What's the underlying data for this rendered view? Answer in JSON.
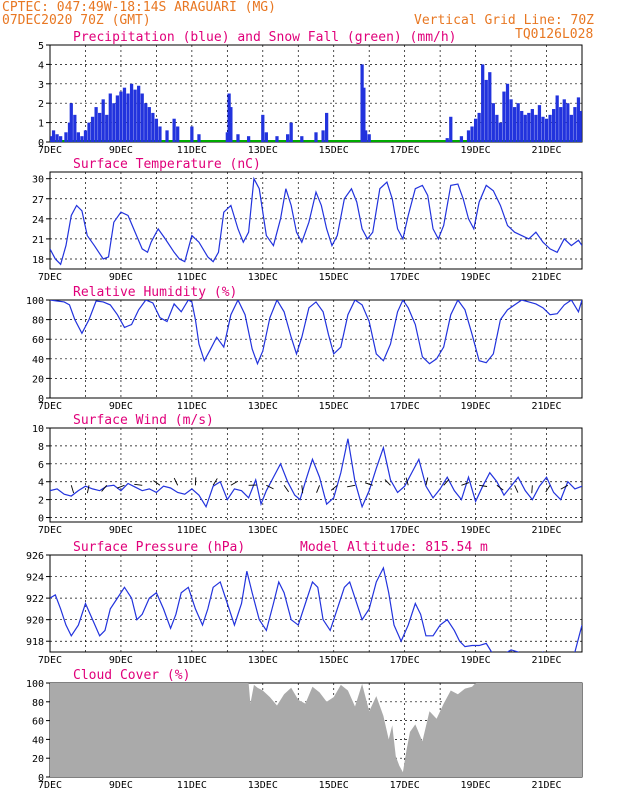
{
  "header": {
    "line1": "CPTEC:   047:49W-18:14S   ARAGUARI (MG)",
    "line2": "07DEC2020 70Z (GMT)",
    "grid_note": "Vertical Grid Line: 70Z",
    "code": "TQ0126L028"
  },
  "x_labels": [
    "7DEC",
    "9DEC",
    "11DEC",
    "13DEC",
    "15DEC",
    "17DEC",
    "19DEC",
    "21DEC"
  ],
  "colors": {
    "line": "#2233dd",
    "bar": "#2233dd",
    "snow": "#00aa00",
    "cloud": "#aaaaaa",
    "title": "#e0007a",
    "header": "#e87722"
  },
  "chart_data": [
    {
      "type": "bar",
      "title": "Precipitation (blue) and Snow Fall (green) (mm/h)",
      "ylim": [
        0,
        5
      ],
      "yticks": [
        0,
        1,
        2,
        3,
        4,
        5
      ],
      "xrange_days": [
        7,
        22
      ],
      "series": [
        {
          "name": "Precipitation",
          "values": [
            [
              7.05,
              0.3
            ],
            [
              7.1,
              0.6
            ],
            [
              7.2,
              0.4
            ],
            [
              7.3,
              0.3
            ],
            [
              7.45,
              0.5
            ],
            [
              7.55,
              1.0
            ],
            [
              7.6,
              2.0
            ],
            [
              7.7,
              1.4
            ],
            [
              7.8,
              0.5
            ],
            [
              7.9,
              0.3
            ],
            [
              8.0,
              0.6
            ],
            [
              8.1,
              1.0
            ],
            [
              8.2,
              1.3
            ],
            [
              8.3,
              1.8
            ],
            [
              8.4,
              1.5
            ],
            [
              8.5,
              2.2
            ],
            [
              8.6,
              1.4
            ],
            [
              8.7,
              2.5
            ],
            [
              8.8,
              2.0
            ],
            [
              8.9,
              2.4
            ],
            [
              9.0,
              2.6
            ],
            [
              9.1,
              2.8
            ],
            [
              9.2,
              2.5
            ],
            [
              9.3,
              3.0
            ],
            [
              9.4,
              2.7
            ],
            [
              9.5,
              2.9
            ],
            [
              9.6,
              2.5
            ],
            [
              9.7,
              2.0
            ],
            [
              9.8,
              1.8
            ],
            [
              9.9,
              1.5
            ],
            [
              10.0,
              1.2
            ],
            [
              10.1,
              0.8
            ],
            [
              10.3,
              0.6
            ],
            [
              10.5,
              1.2
            ],
            [
              10.6,
              0.8
            ],
            [
              11.0,
              0.8
            ],
            [
              11.2,
              0.4
            ],
            [
              12.0,
              0.5
            ],
            [
              12.05,
              2.5
            ],
            [
              12.1,
              1.8
            ],
            [
              12.3,
              0.4
            ],
            [
              12.6,
              0.3
            ],
            [
              13.0,
              1.4
            ],
            [
              13.1,
              0.5
            ],
            [
              13.4,
              0.3
            ],
            [
              13.7,
              0.4
            ],
            [
              13.8,
              1.0
            ],
            [
              14.1,
              0.3
            ],
            [
              14.5,
              0.5
            ],
            [
              14.7,
              0.6
            ],
            [
              14.8,
              1.5
            ],
            [
              15.8,
              4.0
            ],
            [
              15.85,
              2.8
            ],
            [
              15.9,
              0.6
            ],
            [
              16.0,
              0.4
            ],
            [
              18.2,
              0.2
            ],
            [
              18.3,
              1.3
            ],
            [
              18.6,
              0.3
            ],
            [
              18.8,
              0.6
            ],
            [
              18.9,
              0.8
            ],
            [
              19.0,
              1.2
            ],
            [
              19.1,
              1.5
            ],
            [
              19.2,
              4.0
            ],
            [
              19.3,
              3.2
            ],
            [
              19.4,
              3.6
            ],
            [
              19.5,
              2.0
            ],
            [
              19.6,
              1.4
            ],
            [
              19.7,
              1.0
            ],
            [
              19.8,
              2.6
            ],
            [
              19.9,
              3.0
            ],
            [
              20.0,
              2.2
            ],
            [
              20.1,
              1.8
            ],
            [
              20.2,
              2.0
            ],
            [
              20.3,
              1.6
            ],
            [
              20.4,
              1.4
            ],
            [
              20.5,
              1.5
            ],
            [
              20.6,
              1.7
            ],
            [
              20.7,
              1.4
            ],
            [
              20.8,
              1.9
            ],
            [
              20.9,
              1.3
            ],
            [
              21.0,
              1.2
            ],
            [
              21.1,
              1.4
            ],
            [
              21.2,
              1.7
            ],
            [
              21.3,
              2.4
            ],
            [
              21.4,
              1.8
            ],
            [
              21.5,
              2.2
            ],
            [
              21.6,
              2.0
            ],
            [
              21.7,
              1.4
            ],
            [
              21.8,
              1.8
            ],
            [
              21.9,
              2.3
            ],
            [
              21.95,
              1.6
            ]
          ]
        },
        {
          "name": "Snow Fall",
          "values": [
            [
              7.0,
              0
            ],
            [
              22.0,
              0
            ]
          ]
        }
      ]
    },
    {
      "type": "line",
      "title": "Surface Temperature (nC)",
      "ylim": [
        16.5,
        31
      ],
      "yticks": [
        18,
        21,
        24,
        27,
        30
      ],
      "x": [
        7.0,
        7.15,
        7.3,
        7.45,
        7.6,
        7.75,
        7.9,
        8.05,
        8.25,
        8.5,
        8.65,
        8.8,
        9.0,
        9.2,
        9.4,
        9.6,
        9.75,
        9.85,
        10.05,
        10.25,
        10.5,
        10.65,
        10.8,
        11.0,
        11.2,
        11.45,
        11.6,
        11.75,
        11.9,
        12.1,
        12.3,
        12.45,
        12.6,
        12.75,
        12.9,
        13.1,
        13.3,
        13.5,
        13.65,
        13.8,
        13.95,
        14.1,
        14.3,
        14.5,
        14.65,
        14.8,
        14.95,
        15.1,
        15.3,
        15.5,
        15.65,
        15.8,
        15.95,
        16.1,
        16.3,
        16.5,
        16.65,
        16.8,
        16.95,
        17.1,
        17.3,
        17.5,
        17.65,
        17.8,
        17.95,
        18.1,
        18.3,
        18.5,
        18.65,
        18.8,
        18.95,
        19.1,
        19.3,
        19.5,
        19.7,
        19.9,
        20.1,
        20.3,
        20.5,
        20.7,
        20.9,
        21.1,
        21.3,
        21.5,
        21.7,
        21.9,
        22.0
      ],
      "values": [
        19.5,
        18.0,
        17.2,
        20.0,
        24.5,
        26.0,
        25.2,
        21.5,
        20.0,
        18.0,
        18.3,
        23.5,
        25.0,
        24.5,
        22.0,
        19.5,
        19.0,
        20.5,
        22.5,
        21.0,
        19.0,
        18.0,
        17.6,
        21.5,
        20.5,
        18.3,
        17.6,
        19.0,
        25.0,
        26.0,
        22.5,
        20.5,
        22.0,
        30.0,
        28.5,
        21.5,
        20.0,
        24.0,
        28.5,
        26.0,
        22.0,
        20.5,
        23.5,
        28.0,
        26.0,
        22.5,
        20.0,
        21.5,
        27.0,
        28.5,
        26.5,
        22.5,
        21.0,
        22.0,
        28.5,
        29.5,
        27.0,
        22.5,
        21.0,
        24.5,
        28.5,
        29.0,
        27.5,
        22.5,
        21.0,
        23.0,
        29.0,
        29.2,
        27.0,
        24.0,
        22.5,
        26.5,
        29.0,
        28.2,
        26.0,
        23.0,
        22.0,
        21.5,
        21.0,
        22.0,
        20.5,
        19.5,
        19.0,
        21.0,
        20.0,
        20.8,
        20.0
      ]
    },
    {
      "type": "line",
      "title": "Relative Humidity (%)",
      "ylim": [
        0,
        100
      ],
      "yticks": [
        0,
        20,
        40,
        60,
        80,
        100
      ],
      "x": [
        7.0,
        7.2,
        7.4,
        7.55,
        7.7,
        7.9,
        8.1,
        8.3,
        8.5,
        8.7,
        8.9,
        9.1,
        9.3,
        9.5,
        9.7,
        9.9,
        10.1,
        10.3,
        10.5,
        10.7,
        10.9,
        11.0,
        11.1,
        11.2,
        11.35,
        11.5,
        11.7,
        11.9,
        12.1,
        12.3,
        12.5,
        12.7,
        12.85,
        13.0,
        13.2,
        13.4,
        13.6,
        13.8,
        13.95,
        14.1,
        14.3,
        14.5,
        14.7,
        14.85,
        15.0,
        15.2,
        15.4,
        15.6,
        15.8,
        16.0,
        16.2,
        16.4,
        16.6,
        16.8,
        16.95,
        17.1,
        17.3,
        17.5,
        17.7,
        17.9,
        18.1,
        18.3,
        18.5,
        18.7,
        18.9,
        19.1,
        19.3,
        19.5,
        19.7,
        19.9,
        20.1,
        20.3,
        20.5,
        20.7,
        20.9,
        21.1,
        21.3,
        21.5,
        21.7,
        21.9,
        22.0
      ],
      "values": [
        100,
        99,
        98,
        95,
        80,
        66,
        80,
        99,
        98,
        95,
        85,
        72,
        75,
        90,
        100,
        97,
        82,
        78,
        96,
        88,
        100,
        98,
        80,
        55,
        38,
        48,
        62,
        52,
        85,
        100,
        85,
        50,
        35,
        48,
        82,
        100,
        88,
        62,
        45,
        62,
        92,
        98,
        88,
        65,
        45,
        52,
        85,
        100,
        95,
        78,
        45,
        38,
        55,
        88,
        100,
        92,
        75,
        42,
        35,
        40,
        52,
        85,
        100,
        90,
        65,
        38,
        36,
        45,
        80,
        90,
        95,
        100,
        98,
        96,
        92,
        85,
        86,
        95,
        100,
        88,
        100
      ]
    },
    {
      "type": "line",
      "title": "Surface Wind (m/s)",
      "ylim": [
        -0.5,
        10
      ],
      "yticks": [
        0,
        2,
        4,
        6,
        8,
        10
      ],
      "x": [
        7.0,
        7.2,
        7.4,
        7.6,
        7.8,
        8.0,
        8.2,
        8.4,
        8.6,
        8.8,
        9.0,
        9.2,
        9.4,
        9.6,
        9.8,
        10.0,
        10.2,
        10.4,
        10.6,
        10.8,
        11.0,
        11.2,
        11.4,
        11.6,
        11.8,
        12.0,
        12.2,
        12.4,
        12.6,
        12.8,
        12.95,
        13.1,
        13.3,
        13.5,
        13.7,
        13.9,
        14.05,
        14.2,
        14.4,
        14.6,
        14.8,
        15.0,
        15.2,
        15.4,
        15.6,
        15.8,
        16.0,
        16.2,
        16.4,
        16.6,
        16.8,
        17.0,
        17.2,
        17.4,
        17.6,
        17.8,
        18.0,
        18.2,
        18.4,
        18.6,
        18.8,
        19.0,
        19.2,
        19.4,
        19.6,
        19.8,
        20.0,
        20.2,
        20.4,
        20.6,
        20.8,
        21.0,
        21.2,
        21.4,
        21.6,
        21.8,
        22.0
      ],
      "values": [
        3.0,
        3.2,
        2.6,
        2.4,
        3.0,
        3.5,
        3.2,
        3.0,
        3.5,
        3.6,
        3.0,
        3.8,
        3.4,
        3.0,
        3.2,
        2.8,
        3.5,
        3.3,
        2.8,
        2.6,
        3.2,
        2.5,
        1.2,
        3.5,
        4.0,
        2.0,
        3.2,
        3.0,
        2.2,
        4.2,
        1.5,
        3.0,
        4.5,
        6.0,
        4.0,
        2.5,
        2.0,
        4.0,
        6.5,
        4.5,
        1.5,
        2.2,
        5.0,
        8.8,
        4.0,
        1.2,
        3.0,
        5.5,
        7.8,
        4.2,
        2.8,
        3.5,
        5.0,
        6.5,
        3.5,
        2.2,
        3.2,
        4.5,
        3.0,
        2.0,
        4.5,
        1.8,
        3.5,
        5.0,
        4.0,
        2.5,
        3.5,
        4.5,
        3.0,
        2.0,
        3.5,
        4.5,
        2.8,
        2.0,
        4.0,
        3.2,
        3.5
      ]
    },
    {
      "type": "line",
      "title": "Surface Pressure (hPa)",
      "annotation": "Model Altitude: 815.54 m",
      "ylim": [
        917,
        926
      ],
      "yticks": [
        918,
        920,
        922,
        924,
        926
      ],
      "x": [
        7.0,
        7.15,
        7.3,
        7.45,
        7.6,
        7.8,
        8.0,
        8.2,
        8.4,
        8.55,
        8.7,
        8.9,
        9.1,
        9.3,
        9.45,
        9.6,
        9.8,
        10.0,
        10.2,
        10.4,
        10.55,
        10.7,
        10.9,
        11.1,
        11.3,
        11.45,
        11.6,
        11.8,
        12.0,
        12.2,
        12.4,
        12.55,
        12.7,
        12.9,
        13.1,
        13.3,
        13.45,
        13.6,
        13.8,
        14.0,
        14.2,
        14.4,
        14.55,
        14.7,
        14.9,
        15.1,
        15.3,
        15.45,
        15.6,
        15.8,
        16.0,
        16.2,
        16.4,
        16.55,
        16.7,
        16.9,
        17.1,
        17.3,
        17.45,
        17.6,
        17.8,
        18.0,
        18.2,
        18.4,
        18.55,
        18.7,
        18.9,
        19.1,
        19.3,
        19.45,
        19.6,
        19.8,
        20.0,
        20.2,
        20.4,
        20.55,
        20.7,
        20.9,
        21.1,
        21.3,
        21.45,
        21.6,
        21.8,
        22.0
      ],
      "values": [
        922.0,
        922.3,
        921.0,
        919.5,
        918.5,
        919.5,
        921.5,
        920.0,
        918.5,
        919.0,
        921.0,
        922.0,
        923.0,
        922.0,
        920.0,
        920.5,
        922.0,
        922.5,
        921.0,
        919.2,
        920.5,
        922.5,
        923.0,
        921.0,
        919.5,
        921.0,
        923.0,
        923.5,
        921.5,
        919.5,
        921.5,
        924.5,
        922.5,
        920.0,
        919.0,
        921.5,
        923.5,
        922.5,
        920.0,
        919.5,
        921.5,
        923.5,
        923.0,
        920.0,
        919.0,
        921.0,
        923.0,
        923.5,
        922.0,
        920.0,
        921.0,
        923.5,
        924.8,
        922.5,
        919.5,
        918.0,
        919.5,
        921.5,
        920.5,
        918.5,
        918.5,
        919.5,
        920.0,
        919.0,
        918.0,
        917.5,
        917.6,
        917.6,
        917.8,
        917.0,
        916.5,
        916.8,
        917.2,
        917.0,
        916.0,
        915.8,
        916.5,
        917.0,
        915.5,
        915.2,
        916.0,
        916.5,
        917.0,
        919.5
      ]
    },
    {
      "type": "area",
      "title": "Cloud Cover (%)",
      "ylim": [
        0,
        100
      ],
      "yticks": [
        0,
        20,
        40,
        60,
        80,
        100
      ],
      "x": [
        7.0,
        12.6,
        12.65,
        12.75,
        12.85,
        13.0,
        13.2,
        13.4,
        13.6,
        13.8,
        14.0,
        14.2,
        14.4,
        14.6,
        14.8,
        15.0,
        15.2,
        15.4,
        15.6,
        15.8,
        16.0,
        16.2,
        16.4,
        16.55,
        16.65,
        16.75,
        16.85,
        16.95,
        17.05,
        17.15,
        17.3,
        17.5,
        17.7,
        17.9,
        18.1,
        18.3,
        18.5,
        18.7,
        18.9,
        19.0,
        22.0
      ],
      "values": [
        100,
        100,
        78,
        98,
        95,
        92,
        85,
        76,
        88,
        95,
        82,
        78,
        96,
        90,
        80,
        85,
        98,
        92,
        75,
        99,
        70,
        86,
        65,
        40,
        55,
        22,
        12,
        5,
        28,
        48,
        56,
        38,
        70,
        62,
        78,
        92,
        88,
        94,
        96,
        100,
        100
      ]
    }
  ]
}
